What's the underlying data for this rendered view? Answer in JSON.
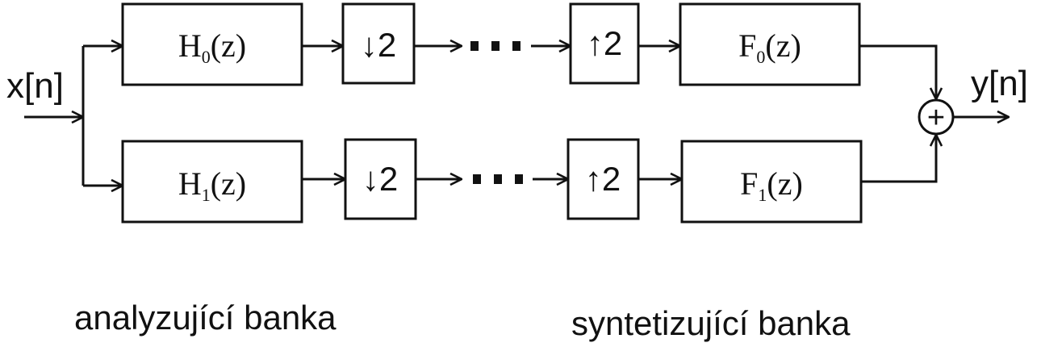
{
  "input_label": "x[n]",
  "output_label": "y[n]",
  "analysis": {
    "caption": "analyzující banka",
    "filters": [
      {
        "base": "H",
        "sub": "0",
        "arg": "(z)"
      },
      {
        "base": "H",
        "sub": "1",
        "arg": "(z)"
      }
    ],
    "downsample": {
      "arrow": "↓",
      "factor": "2"
    }
  },
  "synthesis": {
    "caption": "syntetizující banka",
    "filters": [
      {
        "base": "F",
        "sub": "0",
        "arg": "(z)"
      },
      {
        "base": "F",
        "sub": "1",
        "arg": "(z)"
      }
    ],
    "upsample": {
      "arrow": "↑",
      "factor": "2"
    }
  },
  "summer_symbol": "+"
}
